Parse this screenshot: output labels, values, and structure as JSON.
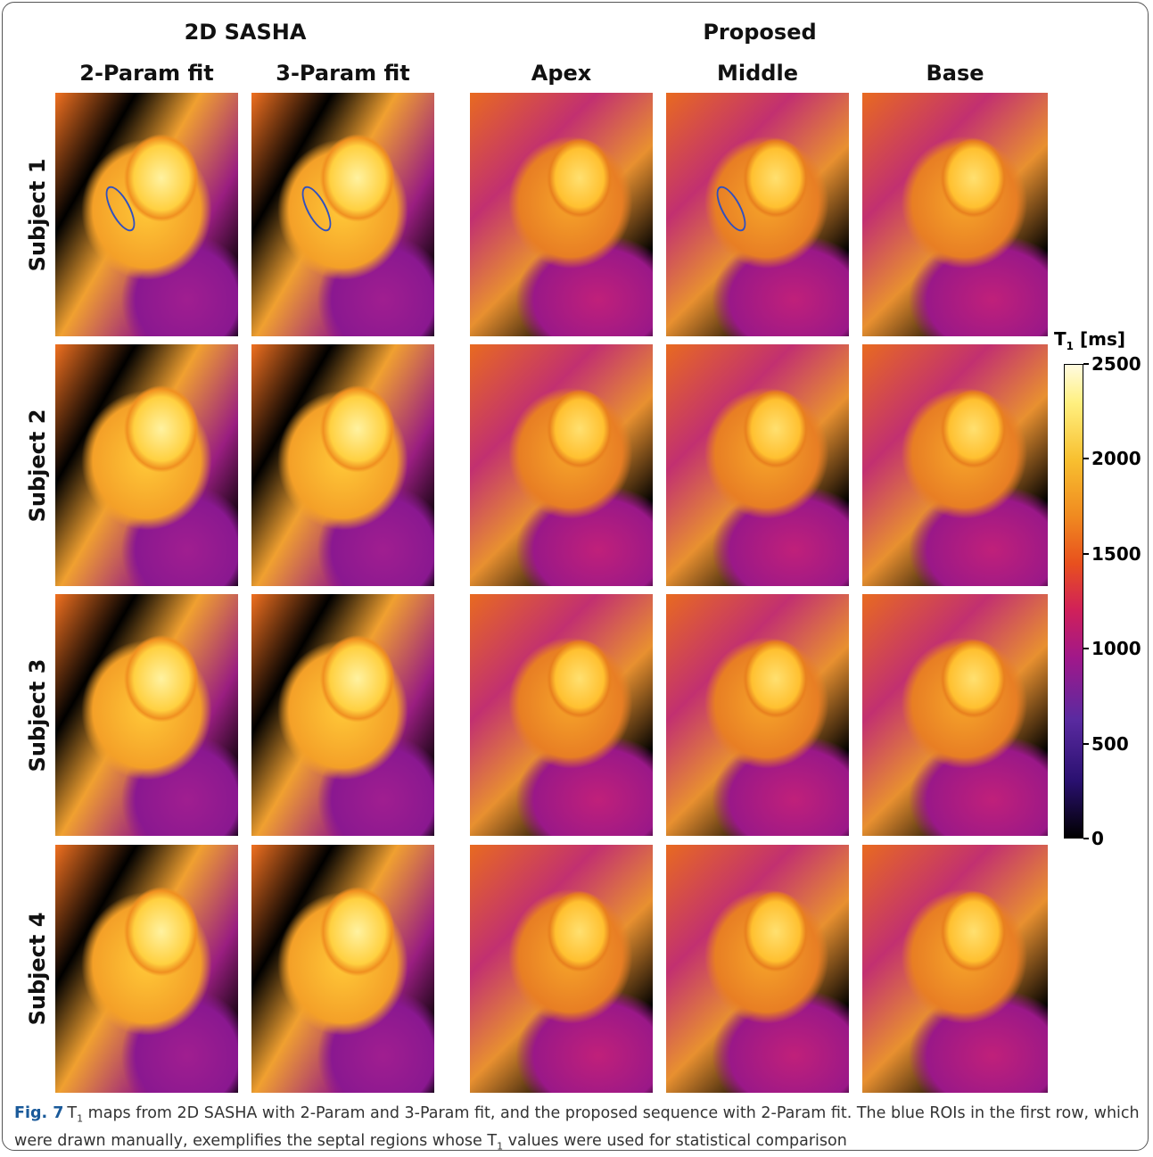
{
  "group_headers": [
    "2D SASHA",
    "Proposed"
  ],
  "column_headers": [
    "2-Param fit",
    "3-Param fit",
    "Apex",
    "Middle",
    "Base"
  ],
  "row_headers": [
    "Subject 1",
    "Subject 2",
    "Subject 3",
    "Subject 4"
  ],
  "colorbar": {
    "label_main": "T",
    "label_sub": "1",
    "label_unit": "[ms]",
    "range": [
      0,
      2500
    ],
    "ticks": [
      0,
      500,
      1000,
      1500,
      2000,
      2500
    ]
  },
  "caption": {
    "label": "Fig. 7",
    "segments": [
      {
        "text": "T"
      },
      {
        "sub": "1"
      },
      {
        "text": " maps from 2D SASHA with 2-Param and 3-Param fit, and the proposed sequence with 2-Param fit. The blue ROIs in the first row, which were drawn manually, exemplifies the septal regions whose T"
      },
      {
        "sub": "1"
      },
      {
        "text": " values were used for statistical comparison"
      }
    ]
  }
}
